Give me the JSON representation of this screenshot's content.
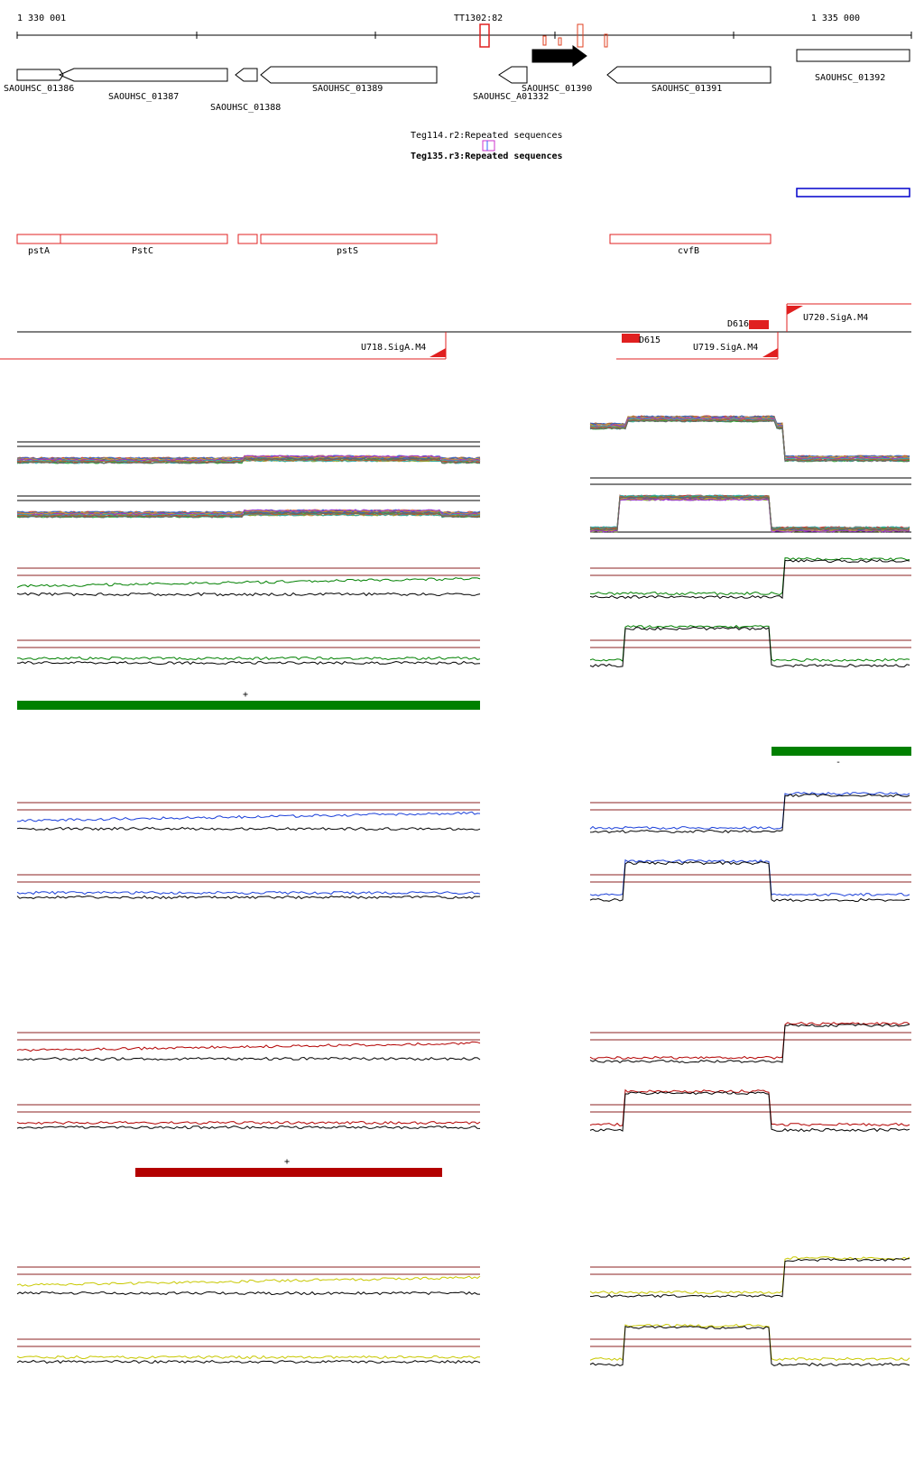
{
  "ruler": {
    "start_label": "1 330 001",
    "end_label": "1 335 000",
    "marker_label": "TT1302:82"
  },
  "genes": [
    {
      "label": "SAOUHSC_01386",
      "strand": "+"
    },
    {
      "label": "SAOUHSC_01387",
      "strand": "-"
    },
    {
      "label": "SAOUHSC_01388",
      "strand": "-"
    },
    {
      "label": "SAOUHSC_01389",
      "strand": "-"
    },
    {
      "label": "SAOUHSC_A01332",
      "strand": "-"
    },
    {
      "label": "SAOUHSC_01390",
      "strand": "+"
    },
    {
      "label": "SAOUHSC_01391",
      "strand": "-"
    },
    {
      "label": "SAOUHSC_01392",
      "strand": "+"
    }
  ],
  "repeats": [
    {
      "label": "Teg114.r2:Repeated sequences"
    },
    {
      "label": "Teg135.r3:Repeated sequences"
    }
  ],
  "annotations": [
    {
      "label": "pstA"
    },
    {
      "label": "PstC"
    },
    {
      "label": ""
    },
    {
      "label": "pstS"
    },
    {
      "label": "cvfB"
    }
  ],
  "transcripts": [
    {
      "label": "U718.SigA.M4"
    },
    {
      "label": "D615"
    },
    {
      "label": "D616"
    },
    {
      "label": "U719.SigA.M4"
    },
    {
      "label": "U720.SigA.M4"
    }
  ],
  "segment_markers": [
    {
      "label": "+",
      "color": "#008000"
    },
    {
      "label": "-",
      "color": "#008000"
    },
    {
      "label": "+",
      "color": "#b30000"
    }
  ],
  "colors": {
    "gene_outline": "#000000",
    "annotation_red": "#e02020",
    "blue_box": "#0000cc",
    "condition_green": "#008000",
    "condition_blue": "#1a3fd9",
    "condition_red": "#b30000",
    "condition_yellow": "#c8c800",
    "threshold": "#8b2020"
  }
}
